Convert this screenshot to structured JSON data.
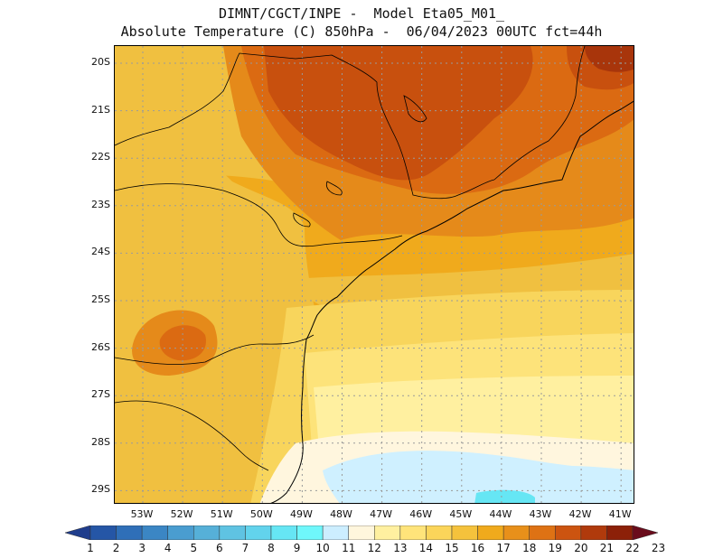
{
  "header": {
    "title_line1": "DIMNT/CGCT/INPE -  Model Eta05_M01_",
    "title_line2": "Absolute Temperature (C) 850hPa -  06/04/2023 00UTC fct=44h"
  },
  "axes": {
    "lat_labels": [
      "20S",
      "21S",
      "22S",
      "23S",
      "24S",
      "25S",
      "26S",
      "27S",
      "28S",
      "29S"
    ],
    "lon_labels": [
      "53W",
      "52W",
      "51W",
      "50W",
      "49W",
      "48W",
      "47W",
      "46W",
      "45W",
      "44W",
      "43W",
      "42W",
      "41W"
    ]
  },
  "colorbar": {
    "labels": [
      "1",
      "2",
      "3",
      "4",
      "5",
      "6",
      "7",
      "8",
      "9",
      "10",
      "11",
      "12",
      "13",
      "14",
      "15",
      "16",
      "17",
      "18",
      "19",
      "20",
      "21",
      "22",
      "23"
    ],
    "colors": [
      "#1f3d8c",
      "#2556a6",
      "#2f6fb8",
      "#3b86c4",
      "#4a9dd0",
      "#56b0d8",
      "#5fc3e2",
      "#62d3ec",
      "#66e6f4",
      "#6ff7fb",
      "#cceeff",
      "#fff6dd",
      "#fff0a0",
      "#ffe47a",
      "#fbd55a",
      "#f5c23c",
      "#f0aa1c",
      "#e8901a",
      "#de7214",
      "#cc5410",
      "#b03a0c",
      "#8c2008",
      "#6a0c1c"
    ]
  },
  "field": {
    "colors": {
      "t11": "#cff0ff",
      "t12": "#fff6de",
      "t13": "#fff0a0",
      "t14": "#fde37a",
      "t15": "#f8d55c",
      "t16": "#f0c040",
      "t17": "#f0aa1c",
      "t18": "#e58a1a",
      "t19": "#db6a12",
      "t20": "#c8500e",
      "t21": "#a8350b",
      "t10": "#66e6f4"
    }
  }
}
